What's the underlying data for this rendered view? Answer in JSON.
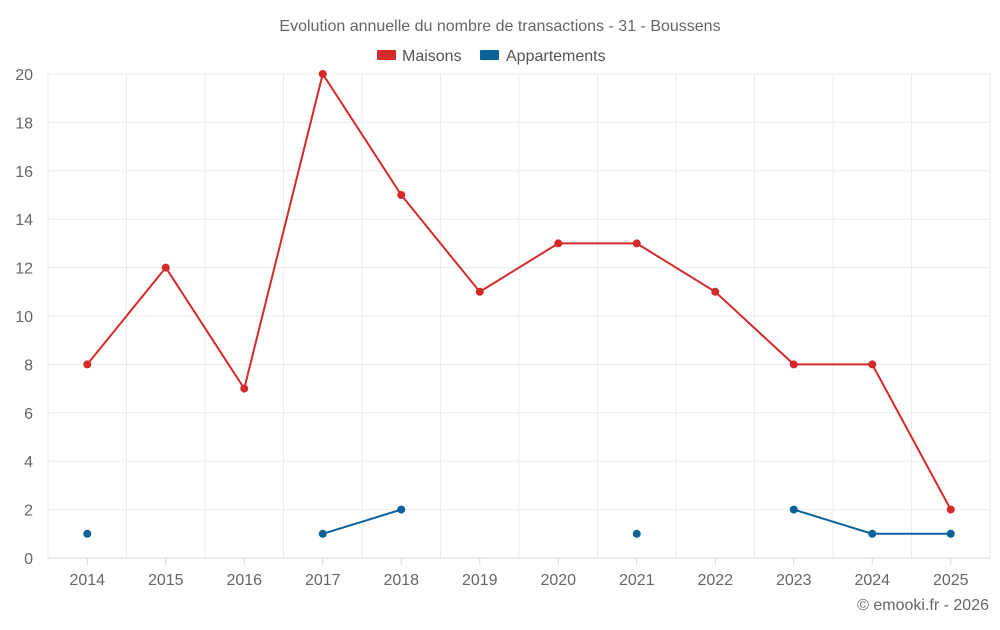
{
  "chart_data": {
    "type": "line",
    "title": "Evolution annuelle du nombre de transactions - 31 - Boussens",
    "xlabel": "",
    "ylabel": "",
    "categories": [
      "2014",
      "2015",
      "2016",
      "2017",
      "2018",
      "2019",
      "2020",
      "2021",
      "2022",
      "2023",
      "2024",
      "2025"
    ],
    "ylim": [
      0,
      20
    ],
    "yticks": [
      0,
      2,
      4,
      6,
      8,
      10,
      12,
      14,
      16,
      18,
      20
    ],
    "grid": true,
    "legend_position": "top-center",
    "series": [
      {
        "name": "Maisons",
        "color": "#d42a2a",
        "values": [
          8,
          12,
          7,
          20,
          15,
          11,
          13,
          13,
          11,
          8,
          8,
          2
        ]
      },
      {
        "name": "Appartements",
        "color": "#0a6299",
        "values": [
          1,
          null,
          null,
          1,
          2,
          null,
          null,
          1,
          null,
          2,
          1,
          1
        ]
      }
    ]
  },
  "credit": "© emooki.fr - 2026"
}
